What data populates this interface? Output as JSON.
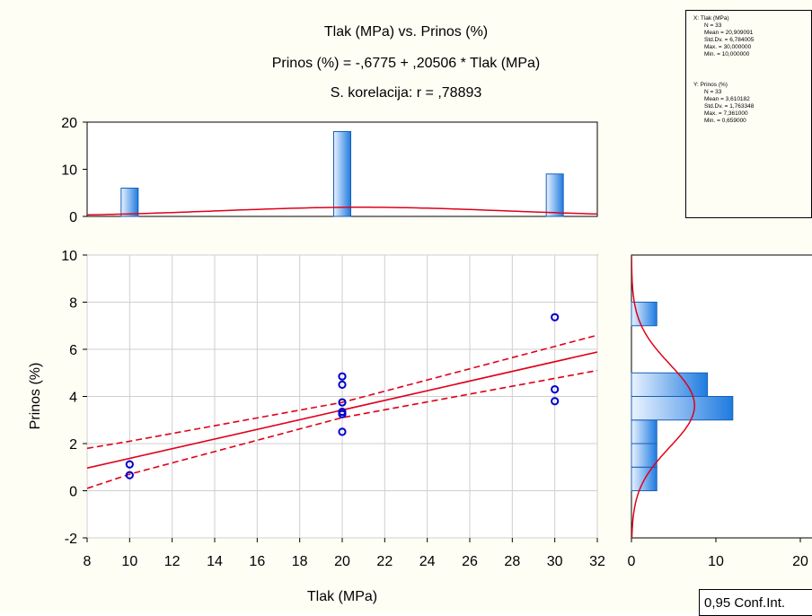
{
  "titles": {
    "line1": "Tlak (MPa) vs. Prinos (%)",
    "line2": "Prinos (%) = -,6775 + ,20506 * Tlak (MPa)",
    "line3": "S. korelacija: r = ,78893"
  },
  "stats": {
    "x": {
      "header": "X:  Tlak (MPa)",
      "lines": [
        "N = 33",
        "Mean = 20,909091",
        "Std.Dv. = 6,784005",
        "Max. = 30,000000",
        "Min. = 10,000000"
      ]
    },
    "y": {
      "header": "Y:  Prinos (%)",
      "lines": [
        "N = 33",
        "Mean = 3,610182",
        "Std.Dv. = 1,763348",
        "Max. = 7,361000",
        "Min. = 0,659000"
      ]
    }
  },
  "legend": {
    "conf_label": "0,95 Conf.Int."
  },
  "colors": {
    "points": "#0000cc",
    "fit": "#e0001a",
    "bar_fill_dark": "#1e7be0",
    "bar_fill_light": "#eaf3ff",
    "bar_edge": "#1a5fb4"
  },
  "chart_data": [
    {
      "type": "scatter",
      "xlabel": "Tlak (MPa)",
      "ylabel": "Prinos (%)",
      "xlim": [
        8,
        32
      ],
      "ylim": [
        -2,
        10
      ],
      "xticks": [
        "8",
        "10",
        "12",
        "14",
        "16",
        "18",
        "20",
        "22",
        "24",
        "26",
        "28",
        "30",
        "32"
      ],
      "yticks": [
        "-2",
        "0",
        "2",
        "4",
        "6",
        "8",
        "10"
      ],
      "grid": true,
      "points": [
        [
          10,
          0.66
        ],
        [
          10,
          1.12
        ],
        [
          20,
          2.5
        ],
        [
          20,
          3.25
        ],
        [
          20,
          3.35
        ],
        [
          20,
          3.75
        ],
        [
          20,
          4.5
        ],
        [
          20,
          4.85
        ],
        [
          30,
          3.8
        ],
        [
          30,
          4.3
        ],
        [
          30,
          7.36
        ]
      ],
      "regression": {
        "intercept": -0.6775,
        "slope": 0.20506
      },
      "confidence_band": {
        "level": 0.95,
        "lower": [
          [
            8,
            0.1
          ],
          [
            10,
            0.7
          ],
          [
            20,
            3.1
          ],
          [
            32,
            5.1
          ]
        ],
        "upper": [
          [
            8,
            1.8
          ],
          [
            10,
            2.1
          ],
          [
            20,
            3.75
          ],
          [
            32,
            6.6
          ]
        ]
      }
    },
    {
      "type": "bar",
      "orientation": "vertical",
      "categories": [
        "10",
        "20",
        "30"
      ],
      "values": [
        6,
        18,
        9
      ],
      "ylim": [
        0,
        20
      ],
      "yticks": [
        "0",
        "10",
        "20"
      ],
      "normal_curve": {
        "mean": 20.909091,
        "sd": 6.784005
      }
    },
    {
      "type": "bar",
      "orientation": "horizontal",
      "bins": [
        {
          "from": 0,
          "to": 1,
          "count": 3
        },
        {
          "from": 1,
          "to": 2,
          "count": 3
        },
        {
          "from": 2,
          "to": 3,
          "count": 3
        },
        {
          "from": 3,
          "to": 4,
          "count": 12
        },
        {
          "from": 4,
          "to": 5,
          "count": 9
        },
        {
          "from": 7,
          "to": 8,
          "count": 3
        }
      ],
      "xlim": [
        0,
        20
      ],
      "xticks": [
        "0",
        "10",
        "20"
      ],
      "normal_curve": {
        "mean": 3.610182,
        "sd": 1.763348
      }
    }
  ]
}
